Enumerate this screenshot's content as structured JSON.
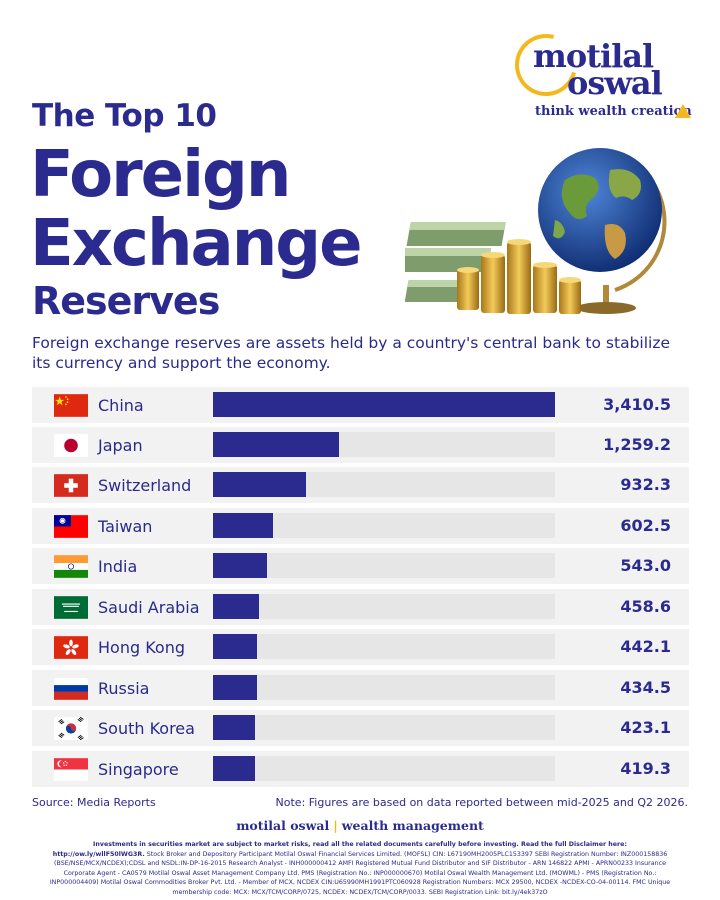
{
  "header": {
    "title_line1": "The Top 10",
    "title_line2": "Foreign",
    "title_line3": "Exchange",
    "title_line4": "Reserves"
  },
  "logo": {
    "word1": "motilal",
    "word2": "oswal",
    "tagline": "think wealth creation"
  },
  "description": "Foreign exchange reserves are assets held by a country's central bank to stabilize its currency and support the economy.",
  "chart_data": {
    "type": "bar",
    "orientation": "horizontal",
    "categories": [
      "China",
      "Japan",
      "Switzerland",
      "Taiwan",
      "India",
      "Saudi Arabia",
      "Hong Kong",
      "Russia",
      "South Korea",
      "Singapore"
    ],
    "values": [
      3410.5,
      1259.2,
      932.3,
      602.5,
      543.0,
      458.6,
      442.1,
      434.5,
      423.1,
      419.3
    ],
    "value_labels": [
      "3,410.5",
      "1,259.2",
      "932.3",
      "602.5",
      "543.0",
      "458.6",
      "442.1",
      "434.5",
      "423.1",
      "419.3"
    ],
    "flag_icons": [
      "china-flag-icon",
      "japan-flag-icon",
      "switzerland-flag-icon",
      "taiwan-flag-icon",
      "india-flag-icon",
      "saudi-arabia-flag-icon",
      "hong-kong-flag-icon",
      "russia-flag-icon",
      "south-korea-flag-icon",
      "singapore-flag-icon"
    ],
    "xlim": [
      0,
      3410.5
    ],
    "bar_color": "#2b2b8f",
    "track_color": "#e6e6e6"
  },
  "footer": {
    "source": "Source: Media Reports",
    "note": "Note: Figures are based on data reported between mid-2025 and Q2 2026.",
    "brand_left": "motilal oswal",
    "brand_sep": "|",
    "brand_right": "wealth management",
    "disclaimer_bold": "Investments in securities market are subject to market risks, read all the related documents carefully before investing. Read the full Disclaimer here: http://ow.ly/wllF50lWG3R.",
    "disclaimer_rest": "Stock Broker and Depository Participant Motilal Oswal Financial Services Limited. (MOFSL) CIN: L67190MH2005PLC153397 SEBI Registration Number: INZ000158836 (BSE/NSE/MCX/NCDEX);CDSL and NSDL:IN-DP-16-2015 Research Analyst - INH000000412 AMFI Registered Mutual Fund Distributor and SIF Distributor - ARN 146822 APMI - APRN00233 Insurance Corporate Agent - CA0579 Motilal Oswal Asset Management Company Ltd. PMS (Registration No.: INP000000670) Motilal Oswal Wealth Management Ltd. (MOWML) - PMS (Registration No.: INP000004409) Motilal Oswal Commodities Broker Pvt. Ltd. - Member of MCX, NCDEX CIN:U65990MH1991PTC060928 Registration Numbers: MCX 29500, NCDEX -NCDEX-CO-04-00114. FMC Unique membership code: MCX: MCX/TCM/CORP/0725, NCDEX: NCDEX/TCM/CORP/0033. SEBI Registration Link: bit.ly/4ek37zO"
  },
  "colors": {
    "brand_navy": "#2b2b8f",
    "brand_gold": "#f5b81c"
  }
}
